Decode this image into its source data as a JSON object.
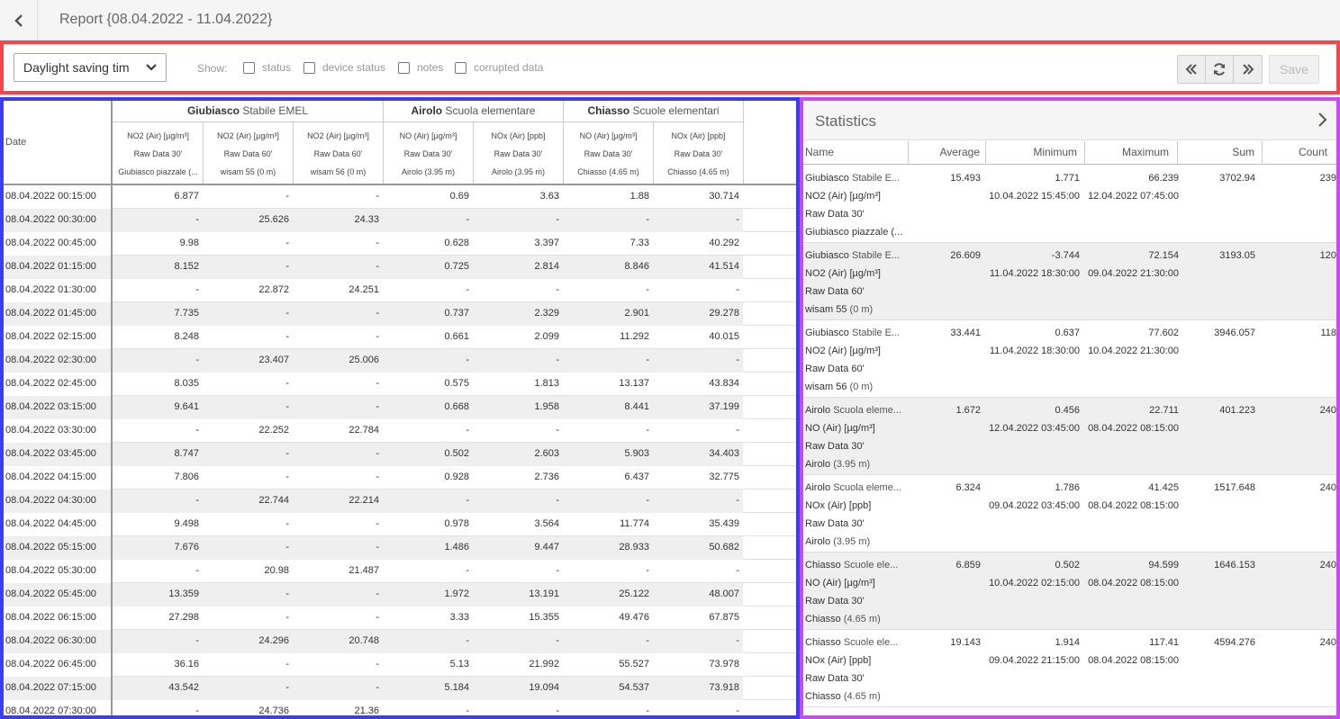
{
  "header": {
    "back_icon": "chevron-left-icon",
    "title": "Report {08.04.2022 - 11.04.2022}"
  },
  "toolbar": {
    "timezone_select": "Daylight saving tim",
    "show_label": "Show:",
    "checkboxes": [
      {
        "label": "status",
        "checked": false
      },
      {
        "label": "device status",
        "checked": false
      },
      {
        "label": "notes",
        "checked": false
      },
      {
        "label": "corrupted data",
        "checked": false
      }
    ],
    "nav_icons": [
      "double-chevron-left-icon",
      "refresh-icon",
      "double-chevron-right-icon"
    ],
    "save_label": "Save"
  },
  "table": {
    "date_header": "Date",
    "stations": [
      {
        "name": "Giubiasco",
        "place": "Stabile EMEL"
      },
      {
        "name": "Airolo",
        "place": "Scuola elementare"
      },
      {
        "name": "Chiasso",
        "place": "Scuole elementari"
      }
    ],
    "columns": [
      {
        "param": "NO2 (Air) [µg/m³]",
        "source": "Raw Data 30'",
        "device": "Giubiasco piazzale (..."
      },
      {
        "param": "NO2 (Air) [µg/m³]",
        "source": "Raw Data 60'",
        "device": "wisam 55 (0 m)"
      },
      {
        "param": "NO2 (Air) [µg/m³]",
        "source": "Raw Data 60'",
        "device": "wisam 56 (0 m)"
      },
      {
        "param": "NO (Air) [µg/m³]",
        "source": "Raw Data 30'",
        "device": "Airolo (3.95 m)"
      },
      {
        "param": "NOx (Air) [ppb]",
        "source": "Raw Data 30'",
        "device": "Airolo (3.95 m)"
      },
      {
        "param": "NO (Air) [µg/m³]",
        "source": "Raw Data 30'",
        "device": "Chiasso (4.65 m)"
      },
      {
        "param": "NOx (Air) [ppb]",
        "source": "Raw Data 30'",
        "device": "Chiasso (4.65 m)"
      }
    ],
    "rows": [
      {
        "date": "08.04.2022 00:15:00",
        "values": [
          "6.877",
          "-",
          "-",
          "0.69",
          "3.63",
          "1.88",
          "30.714"
        ]
      },
      {
        "date": "08.04.2022 00:30:00",
        "values": [
          "-",
          "25.626",
          "24.33",
          "-",
          "-",
          "-",
          "-"
        ]
      },
      {
        "date": "08.04.2022 00:45:00",
        "values": [
          "9.98",
          "-",
          "-",
          "0.628",
          "3.397",
          "7.33",
          "40.292"
        ]
      },
      {
        "date": "08.04.2022 01:15:00",
        "values": [
          "8.152",
          "-",
          "-",
          "0.725",
          "2.814",
          "8.846",
          "41.514"
        ]
      },
      {
        "date": "08.04.2022 01:30:00",
        "values": [
          "-",
          "22.872",
          "24.251",
          "-",
          "-",
          "-",
          "-"
        ]
      },
      {
        "date": "08.04.2022 01:45:00",
        "values": [
          "7.735",
          "-",
          "-",
          "0.737",
          "2.329",
          "2.901",
          "29.278"
        ]
      },
      {
        "date": "08.04.2022 02:15:00",
        "values": [
          "8.248",
          "-",
          "-",
          "0.661",
          "2.099",
          "11.292",
          "40.015"
        ]
      },
      {
        "date": "08.04.2022 02:30:00",
        "values": [
          "-",
          "23.407",
          "25.006",
          "-",
          "-",
          "-",
          "-"
        ]
      },
      {
        "date": "08.04.2022 02:45:00",
        "values": [
          "8.035",
          "-",
          "-",
          "0.575",
          "1.813",
          "13.137",
          "43.834"
        ]
      },
      {
        "date": "08.04.2022 03:15:00",
        "values": [
          "9.641",
          "-",
          "-",
          "0.668",
          "1.958",
          "8.441",
          "37.199"
        ]
      },
      {
        "date": "08.04.2022 03:30:00",
        "values": [
          "-",
          "22.252",
          "22.784",
          "-",
          "-",
          "-",
          "-"
        ]
      },
      {
        "date": "08.04.2022 03:45:00",
        "values": [
          "8.747",
          "-",
          "-",
          "0.502",
          "2.603",
          "5.903",
          "34.403"
        ]
      },
      {
        "date": "08.04.2022 04:15:00",
        "values": [
          "7.806",
          "-",
          "-",
          "0.928",
          "2.736",
          "6.437",
          "32.775"
        ]
      },
      {
        "date": "08.04.2022 04:30:00",
        "values": [
          "-",
          "22.744",
          "22.214",
          "-",
          "-",
          "-",
          "-"
        ]
      },
      {
        "date": "08.04.2022 04:45:00",
        "values": [
          "9.498",
          "-",
          "-",
          "0.978",
          "3.564",
          "11.774",
          "35.439"
        ]
      },
      {
        "date": "08.04.2022 05:15:00",
        "values": [
          "7.676",
          "-",
          "-",
          "1.486",
          "9.447",
          "28.933",
          "50.682"
        ]
      },
      {
        "date": "08.04.2022 05:30:00",
        "values": [
          "-",
          "20.98",
          "21.487",
          "-",
          "-",
          "-",
          "-"
        ]
      },
      {
        "date": "08.04.2022 05:45:00",
        "values": [
          "13.359",
          "-",
          "-",
          "1.972",
          "13.191",
          "25.122",
          "48.007"
        ]
      },
      {
        "date": "08.04.2022 06:15:00",
        "values": [
          "27.298",
          "-",
          "-",
          "3.33",
          "15.355",
          "49.476",
          "67.875"
        ]
      },
      {
        "date": "08.04.2022 06:30:00",
        "values": [
          "-",
          "24.296",
          "20.748",
          "-",
          "-",
          "-",
          "-"
        ]
      },
      {
        "date": "08.04.2022 06:45:00",
        "values": [
          "36.16",
          "-",
          "-",
          "5.13",
          "21.992",
          "55.527",
          "73.978"
        ]
      },
      {
        "date": "08.04.2022 07:15:00",
        "values": [
          "43.542",
          "-",
          "-",
          "5.184",
          "19.094",
          "54.537",
          "73.918"
        ]
      },
      {
        "date": "08.04.2022 07:30:00",
        "values": [
          "-",
          "24.736",
          "21.36",
          "-",
          "-",
          "-",
          "-"
        ]
      }
    ]
  },
  "statistics": {
    "title": "Statistics",
    "expand_icon": "chevron-right-icon",
    "columns": [
      "Name",
      "Average",
      "Minimum",
      "Maximum",
      "Sum",
      "Count"
    ],
    "rows": [
      {
        "station": "Giubiasco",
        "place": "Stabile E...",
        "param": "NO2 (Air) [µg/m³]",
        "source": "Raw Data 30'",
        "device": "Giubiasco piazzale (...",
        "device_extra": "",
        "average": "15.493",
        "minimum": "1.771",
        "min_time": "10.04.2022 15:45:00",
        "maximum": "66.239",
        "max_time": "12.04.2022 07:45:00",
        "sum": "3702.94",
        "count": "239"
      },
      {
        "station": "Giubiasco",
        "place": "Stabile E...",
        "param": "NO2 (Air) [µg/m³]",
        "source": "Raw Data 60'",
        "device": "wisam 55",
        "device_extra": "(0 m)",
        "average": "26.609",
        "minimum": "-3.744",
        "min_time": "11.04.2022 18:30:00",
        "maximum": "72.154",
        "max_time": "09.04.2022 21:30:00",
        "sum": "3193.05",
        "count": "120"
      },
      {
        "station": "Giubiasco",
        "place": "Stabile E...",
        "param": "NO2 (Air) [µg/m³]",
        "source": "Raw Data 60'",
        "device": "wisam 56",
        "device_extra": "(0 m)",
        "average": "33.441",
        "minimum": "0.637",
        "min_time": "11.04.2022 18:30:00",
        "maximum": "77.602",
        "max_time": "10.04.2022 21:30:00",
        "sum": "3946.057",
        "count": "118"
      },
      {
        "station": "Airolo",
        "place": "Scuola eleme...",
        "param": "NO (Air) [µg/m³]",
        "source": "Raw Data 30'",
        "device": "Airolo",
        "device_extra": "(3.95 m)",
        "average": "1.672",
        "minimum": "0.456",
        "min_time": "12.04.2022 03:45:00",
        "maximum": "22.711",
        "max_time": "08.04.2022 08:15:00",
        "sum": "401.223",
        "count": "240"
      },
      {
        "station": "Airolo",
        "place": "Scuola eleme...",
        "param": "NOx (Air) [ppb]",
        "source": "Raw Data 30'",
        "device": "Airolo",
        "device_extra": "(3.95 m)",
        "average": "6.324",
        "minimum": "1.786",
        "min_time": "09.04.2022 03:45:00",
        "maximum": "41.425",
        "max_time": "08.04.2022 08:15:00",
        "sum": "1517.648",
        "count": "240"
      },
      {
        "station": "Chiasso",
        "place": "Scuole ele...",
        "param": "NO (Air) [µg/m³]",
        "source": "Raw Data 30'",
        "device": "Chiasso",
        "device_extra": "(4.65 m)",
        "average": "6.859",
        "minimum": "0.502",
        "min_time": "10.04.2022 02:15:00",
        "maximum": "94.599",
        "max_time": "08.04.2022 08:15:00",
        "sum": "1646.153",
        "count": "240"
      },
      {
        "station": "Chiasso",
        "place": "Scuole ele...",
        "param": "NOx (Air) [ppb]",
        "source": "Raw Data 30'",
        "device": "Chiasso",
        "device_extra": "(4.65 m)",
        "average": "19.143",
        "minimum": "1.914",
        "min_time": "09.04.2022 21:15:00",
        "maximum": "117.41",
        "max_time": "08.04.2022 08:15:00",
        "sum": "4594.276",
        "count": "240"
      }
    ]
  }
}
